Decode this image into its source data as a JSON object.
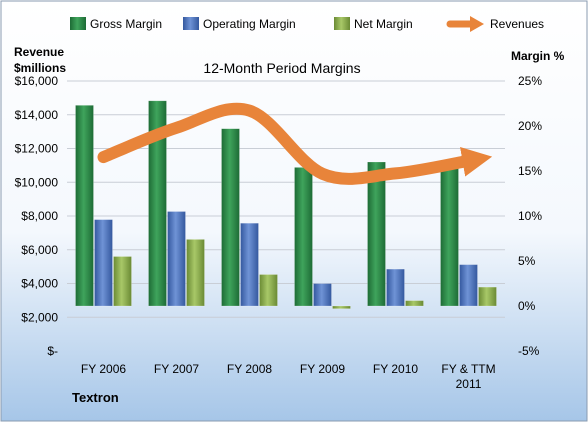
{
  "chart_data": {
    "type": "bar",
    "title": "12-Month Period Margins",
    "company": "Textron",
    "categories": [
      [
        "FY 2006"
      ],
      [
        "FY 2007"
      ],
      [
        "FY 2008"
      ],
      [
        "FY 2009"
      ],
      [
        "FY 2010"
      ],
      [
        "FY & TTM",
        "2011"
      ]
    ],
    "left_axis": {
      "title_lines": [
        "Revenue",
        "$millions"
      ],
      "ylim": [
        0,
        16000
      ],
      "ticks": [
        0,
        2000,
        4000,
        6000,
        8000,
        10000,
        12000,
        14000,
        16000
      ],
      "tick_labels": [
        "$-",
        "$2,000",
        "$4,000",
        "$6,000",
        "$8,000",
        "$10,000",
        "$12,000",
        "$14,000",
        "$16,000"
      ]
    },
    "right_axis": {
      "title": "Margin %",
      "ylim": [
        -5,
        25
      ],
      "ticks": [
        -5,
        0,
        5,
        10,
        15,
        20,
        25
      ],
      "tick_labels": [
        "-5%",
        "0%",
        "5%",
        "10%",
        "15%",
        "20%",
        "25%"
      ]
    },
    "series": [
      {
        "name": "Gross Margin",
        "axis": "right",
        "kind": "bar",
        "color": "#2E8B48",
        "values": [
          22.3,
          22.8,
          19.7,
          15.4,
          16.0,
          15.7
        ]
      },
      {
        "name": "Operating Margin",
        "axis": "right",
        "kind": "bar",
        "color": "#4F77C4",
        "values": [
          9.6,
          10.5,
          9.2,
          2.5,
          4.1,
          4.6
        ]
      },
      {
        "name": "Net Margin",
        "axis": "right",
        "kind": "bar",
        "color": "#8FB050",
        "values": [
          5.5,
          7.4,
          3.5,
          -0.3,
          0.6,
          2.1
        ]
      },
      {
        "name": "Revenues",
        "axis": "left",
        "kind": "line",
        "color": "#E8843A",
        "values": [
          11490,
          13225,
          14246,
          10500,
          10525,
          11275
        ]
      }
    ],
    "grid": true,
    "legend": "top"
  }
}
